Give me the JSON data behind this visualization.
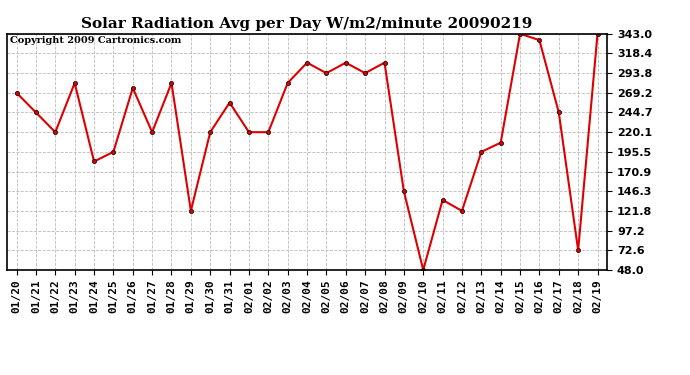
{
  "title": "Solar Radiation Avg per Day W/m2/minute 20090219",
  "copyright": "Copyright 2009 Cartronics.com",
  "labels": [
    "01/20",
    "01/21",
    "01/22",
    "01/23",
    "01/24",
    "01/25",
    "01/26",
    "01/27",
    "01/28",
    "01/29",
    "01/30",
    "01/31",
    "02/01",
    "02/02",
    "02/03",
    "02/04",
    "02/05",
    "02/06",
    "02/07",
    "02/08",
    "02/09",
    "02/10",
    "02/11",
    "02/12",
    "02/13",
    "02/14",
    "02/15",
    "02/16",
    "02/17",
    "02/18",
    "02/19"
  ],
  "values": [
    269.2,
    244.7,
    220.1,
    281.5,
    183.5,
    195.5,
    275.3,
    220.1,
    281.5,
    121.8,
    220.1,
    257.0,
    220.1,
    220.1,
    281.5,
    306.9,
    293.8,
    306.9,
    293.8,
    306.9,
    146.3,
    48.0,
    135.5,
    121.8,
    195.5,
    207.0,
    343.0,
    335.0,
    244.7,
    72.6,
    343.0
  ],
  "y_ticks": [
    48.0,
    72.6,
    97.2,
    121.8,
    146.3,
    170.9,
    195.5,
    220.1,
    244.7,
    269.2,
    293.8,
    318.4,
    343.0
  ],
  "ymin": 48.0,
  "ymax": 343.0,
  "line_color": "#dd0000",
  "marker_color": "#dd0000",
  "bg_color": "#ffffff",
  "grid_color": "#bbbbbb",
  "title_fontsize": 11,
  "copyright_fontsize": 7,
  "tick_fontsize": 8
}
